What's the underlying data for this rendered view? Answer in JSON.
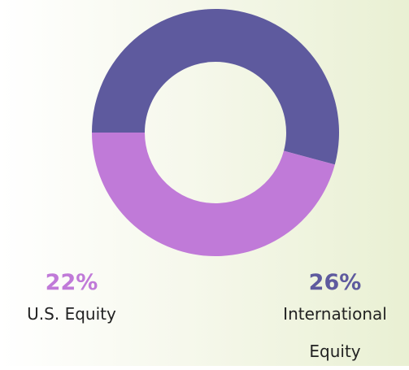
{
  "chart_data": {
    "type": "pie",
    "donut": true,
    "categories": [
      "U.S. Equity",
      "International Equity"
    ],
    "values": [
      22,
      26
    ],
    "value_labels": [
      "22%",
      "26%"
    ],
    "colors": [
      "#c07ad8",
      "#5e5a9e"
    ]
  }
}
